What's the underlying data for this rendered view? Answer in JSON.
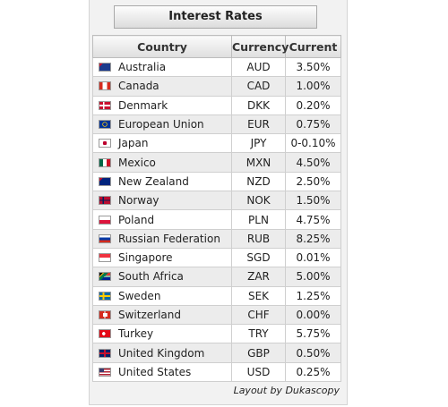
{
  "widget": {
    "title": "Interest Rates",
    "footer": "Layout by Dukascopy"
  },
  "table": {
    "headers": {
      "country": "Country",
      "currency": "Currency",
      "current": "Current"
    },
    "rows": [
      {
        "country": "Australia",
        "currency": "AUD",
        "current": "3.50%",
        "flag": "au-flag-icon"
      },
      {
        "country": "Canada",
        "currency": "CAD",
        "current": "1.00%",
        "flag": "ca-flag-icon"
      },
      {
        "country": "Denmark",
        "currency": "DKK",
        "current": "0.20%",
        "flag": "dk-flag-icon"
      },
      {
        "country": "European Union",
        "currency": "EUR",
        "current": "0.75%",
        "flag": "eu-flag-icon"
      },
      {
        "country": "Japan",
        "currency": "JPY",
        "current": "0-0.10%",
        "flag": "jp-flag-icon"
      },
      {
        "country": "Mexico",
        "currency": "MXN",
        "current": "4.50%",
        "flag": "mx-flag-icon"
      },
      {
        "country": "New Zealand",
        "currency": "NZD",
        "current": "2.50%",
        "flag": "nz-flag-icon"
      },
      {
        "country": "Norway",
        "currency": "NOK",
        "current": "1.50%",
        "flag": "no-flag-icon"
      },
      {
        "country": "Poland",
        "currency": "PLN",
        "current": "4.75%",
        "flag": "pl-flag-icon"
      },
      {
        "country": "Russian Federation",
        "currency": "RUB",
        "current": "8.25%",
        "flag": "ru-flag-icon"
      },
      {
        "country": "Singapore",
        "currency": "SGD",
        "current": "0.01%",
        "flag": "sg-flag-icon"
      },
      {
        "country": "South Africa",
        "currency": "ZAR",
        "current": "5.00%",
        "flag": "za-flag-icon"
      },
      {
        "country": "Sweden",
        "currency": "SEK",
        "current": "1.25%",
        "flag": "se-flag-icon"
      },
      {
        "country": "Switzerland",
        "currency": "CHF",
        "current": "0.00%",
        "flag": "ch-flag-icon"
      },
      {
        "country": "Turkey",
        "currency": "TRY",
        "current": "5.75%",
        "flag": "tr-flag-icon"
      },
      {
        "country": "United Kingdom",
        "currency": "GBP",
        "current": "0.50%",
        "flag": "gb-flag-icon"
      },
      {
        "country": "United States",
        "currency": "USD",
        "current": "0.25%",
        "flag": "us-flag-icon"
      }
    ]
  }
}
